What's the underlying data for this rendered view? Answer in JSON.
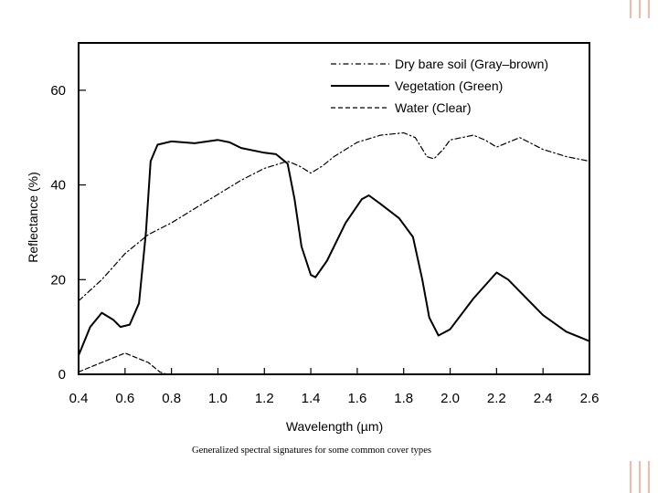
{
  "colors": {
    "decoration": "#f4b9a4",
    "ink": "#000000",
    "background": "#ffffff"
  },
  "chart_data": {
    "type": "line",
    "title": "",
    "xlabel": "Wavelength (µm)",
    "ylabel": "Reflectance (%)",
    "xlim": [
      0.4,
      2.6
    ],
    "ylim": [
      0,
      70
    ],
    "xticks": [
      "0.4",
      "0.6",
      "0.8",
      "1.0",
      "1.2",
      "1.4",
      "1.6",
      "1.8",
      "2.0",
      "2.2",
      "2.4",
      "2.6"
    ],
    "yticks": [
      "0",
      "20",
      "40",
      "60"
    ],
    "legend_position": "top-right",
    "caption": "Generalized spectral signatures for some common cover types",
    "series": [
      {
        "name": "Dry bare soil (Gray–brown)",
        "style": "dash-dot",
        "points": [
          [
            0.4,
            15.5
          ],
          [
            0.5,
            20
          ],
          [
            0.6,
            25.5
          ],
          [
            0.7,
            29.5
          ],
          [
            0.8,
            32
          ],
          [
            0.9,
            35
          ],
          [
            1.0,
            38
          ],
          [
            1.1,
            41
          ],
          [
            1.2,
            43.5
          ],
          [
            1.3,
            45
          ],
          [
            1.35,
            44
          ],
          [
            1.4,
            42.5
          ],
          [
            1.45,
            44
          ],
          [
            1.5,
            46
          ],
          [
            1.6,
            49
          ],
          [
            1.7,
            50.5
          ],
          [
            1.8,
            51
          ],
          [
            1.85,
            50
          ],
          [
            1.9,
            46
          ],
          [
            1.93,
            45.5
          ],
          [
            1.97,
            47.5
          ],
          [
            2.0,
            49.5
          ],
          [
            2.1,
            50.5
          ],
          [
            2.15,
            49.5
          ],
          [
            2.2,
            48
          ],
          [
            2.25,
            49
          ],
          [
            2.3,
            50
          ],
          [
            2.4,
            47.5
          ],
          [
            2.5,
            46
          ],
          [
            2.6,
            45
          ]
        ]
      },
      {
        "name": "Vegetation (Green)",
        "style": "solid",
        "points": [
          [
            0.4,
            4
          ],
          [
            0.45,
            10
          ],
          [
            0.5,
            13
          ],
          [
            0.55,
            11.5
          ],
          [
            0.58,
            10
          ],
          [
            0.62,
            10.5
          ],
          [
            0.66,
            15
          ],
          [
            0.69,
            30
          ],
          [
            0.71,
            45
          ],
          [
            0.74,
            48.5
          ],
          [
            0.8,
            49.2
          ],
          [
            0.9,
            48.8
          ],
          [
            1.0,
            49.5
          ],
          [
            1.05,
            49
          ],
          [
            1.1,
            47.8
          ],
          [
            1.2,
            46.8
          ],
          [
            1.25,
            46.5
          ],
          [
            1.3,
            44.5
          ],
          [
            1.33,
            37
          ],
          [
            1.36,
            27
          ],
          [
            1.4,
            21
          ],
          [
            1.42,
            20.5
          ],
          [
            1.47,
            24
          ],
          [
            1.55,
            32
          ],
          [
            1.62,
            37
          ],
          [
            1.65,
            37.8
          ],
          [
            1.7,
            36
          ],
          [
            1.78,
            33
          ],
          [
            1.84,
            29
          ],
          [
            1.88,
            20
          ],
          [
            1.91,
            12
          ],
          [
            1.95,
            8.2
          ],
          [
            2.0,
            9.5
          ],
          [
            2.1,
            16
          ],
          [
            2.2,
            21.5
          ],
          [
            2.25,
            20
          ],
          [
            2.3,
            17.5
          ],
          [
            2.4,
            12.5
          ],
          [
            2.5,
            9
          ],
          [
            2.6,
            7
          ]
        ]
      },
      {
        "name": "Water (Clear)",
        "style": "dashed",
        "points": [
          [
            0.4,
            0.5
          ],
          [
            0.5,
            2.5
          ],
          [
            0.6,
            4.5
          ],
          [
            0.65,
            3.5
          ],
          [
            0.7,
            2.5
          ],
          [
            0.75,
            0.5
          ],
          [
            0.78,
            0
          ]
        ]
      }
    ]
  }
}
